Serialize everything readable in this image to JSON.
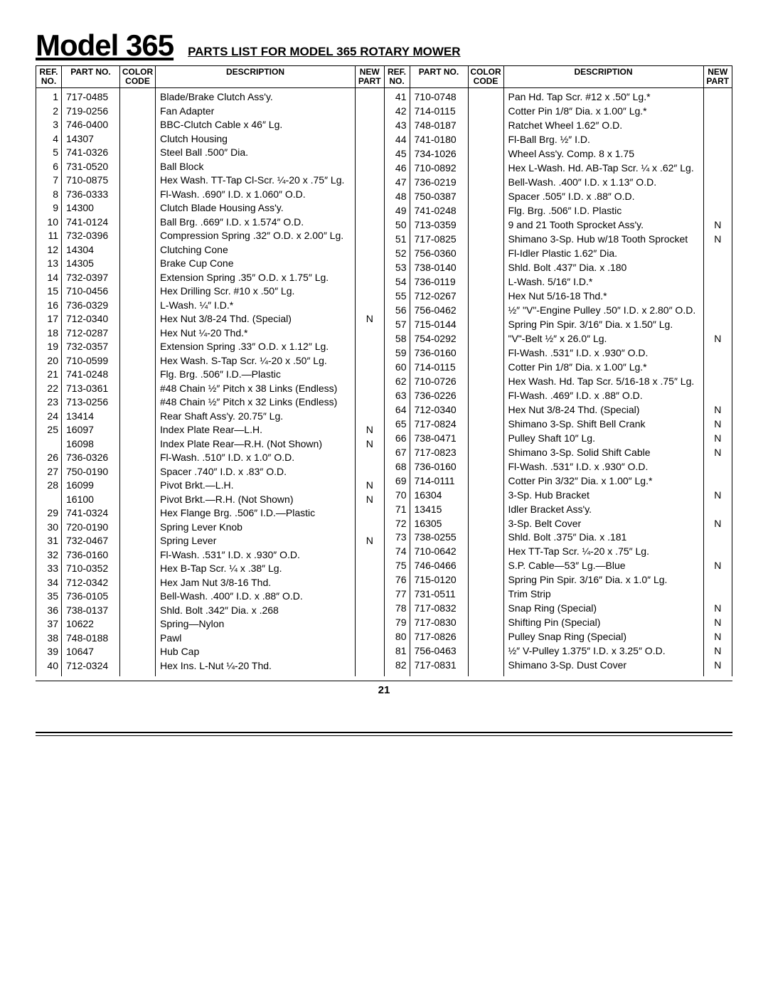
{
  "header": {
    "model_title": "Model 365",
    "subtitle": "PARTS LIST FOR MODEL 365 ROTARY MOWER"
  },
  "columns": {
    "ref": "REF.\nNO.",
    "part": "PART\nNO.",
    "color": "COLOR\nCODE",
    "desc": "DESCRIPTION",
    "newpart": "NEW\nPART"
  },
  "page_number": "21",
  "left": [
    {
      "ref": "1",
      "part": "717-0485",
      "desc": "Blade/Brake Clutch Ass'y."
    },
    {
      "ref": "2",
      "part": "719-0256",
      "desc": "Fan Adapter"
    },
    {
      "ref": "3",
      "part": "746-0400",
      "desc": "BBC-Clutch Cable x 46″ Lg."
    },
    {
      "ref": "4",
      "part": "14307",
      "desc": "Clutch Housing"
    },
    {
      "ref": "5",
      "part": "741-0326",
      "desc": "Steel Ball .500″ Dia."
    },
    {
      "ref": "6",
      "part": "731-0520",
      "desc": "Ball Block"
    },
    {
      "ref": "7",
      "part": "710-0875",
      "desc": "Hex Wash. TT-Tap Cl-Scr. ¼-20 x .75″ Lg."
    },
    {
      "ref": "8",
      "part": "736-0333",
      "desc": "Fl-Wash. .690″ I.D. x 1.060″ O.D."
    },
    {
      "ref": "9",
      "part": "14300",
      "desc": "Clutch Blade Housing Ass'y."
    },
    {
      "ref": "10",
      "part": "741-0124",
      "desc": "Ball Brg. .669″ I.D. x 1.574″ O.D."
    },
    {
      "ref": "11",
      "part": "732-0396",
      "desc": "Compression Spring .32″ O.D. x 2.00″ Lg."
    },
    {
      "ref": "12",
      "part": "14304",
      "desc": "Clutching Cone"
    },
    {
      "ref": "13",
      "part": "14305",
      "desc": "Brake Cup Cone"
    },
    {
      "ref": "14",
      "part": "732-0397",
      "desc": "Extension Spring .35″ O.D. x 1.75″ Lg."
    },
    {
      "ref": "15",
      "part": "710-0456",
      "desc": "Hex Drilling Scr. #10 x .50″ Lg."
    },
    {
      "ref": "16",
      "part": "736-0329",
      "desc": "L-Wash. ¼″ I.D.*"
    },
    {
      "ref": "17",
      "part": "712-0340",
      "desc": "Hex Nut 3/8-24 Thd. (Special)",
      "np": "N"
    },
    {
      "ref": "18",
      "part": "712-0287",
      "desc": "Hex Nut ¼-20 Thd.*"
    },
    {
      "ref": "19",
      "part": "732-0357",
      "desc": "Extension Spring .33″ O.D. x 1.12″ Lg."
    },
    {
      "ref": "20",
      "part": "710-0599",
      "desc": "Hex Wash. S-Tap Scr. ¼-20 x .50″ Lg."
    },
    {
      "ref": "21",
      "part": "741-0248",
      "desc": "Flg. Brg. .506″ I.D.—Plastic"
    },
    {
      "ref": "22",
      "part": "713-0361",
      "desc": "#48 Chain ½″ Pitch x 38 Links (Endless)"
    },
    {
      "ref": "23",
      "part": "713-0256",
      "desc": "#48 Chain ½″ Pitch x 32 Links (Endless)"
    },
    {
      "ref": "24",
      "part": "13414",
      "desc": "Rear Shaft Ass'y. 20.75″ Lg."
    },
    {
      "ref": "25",
      "part": "16097",
      "desc": "Index Plate Rear—L.H.",
      "np": "N"
    },
    {
      "ref": "",
      "part": "16098",
      "desc": "Index Plate Rear—R.H. (Not Shown)",
      "np": "N"
    },
    {
      "ref": "26",
      "part": "736-0326",
      "desc": "Fl-Wash. .510″ I.D. x 1.0″ O.D."
    },
    {
      "ref": "27",
      "part": "750-0190",
      "desc": "Spacer .740″ I.D. x .83″ O.D."
    },
    {
      "ref": "28",
      "part": "16099",
      "desc": "Pivot Brkt.—L.H.",
      "np": "N"
    },
    {
      "ref": "",
      "part": "16100",
      "desc": "Pivot Brkt.—R.H. (Not Shown)",
      "np": "N"
    },
    {
      "ref": "29",
      "part": "741-0324",
      "desc": "Hex Flange Brg. .506″ I.D.—Plastic"
    },
    {
      "ref": "30",
      "part": "720-0190",
      "desc": "Spring Lever Knob"
    },
    {
      "ref": "31",
      "part": "732-0467",
      "desc": "Spring Lever",
      "np": "N"
    },
    {
      "ref": "32",
      "part": "736-0160",
      "desc": "Fl-Wash. .531″ I.D. x .930″ O.D."
    },
    {
      "ref": "33",
      "part": "710-0352",
      "desc": "Hex B-Tap Scr. ¼ x .38″ Lg."
    },
    {
      "ref": "34",
      "part": "712-0342",
      "desc": "Hex Jam Nut 3/8-16 Thd."
    },
    {
      "ref": "35",
      "part": "736-0105",
      "desc": "Bell-Wash. .400″ I.D. x .88″ O.D."
    },
    {
      "ref": "36",
      "part": "738-0137",
      "desc": "Shld. Bolt .342″ Dia. x .268"
    },
    {
      "ref": "37",
      "part": "10622",
      "desc": "Spring—Nylon"
    },
    {
      "ref": "38",
      "part": "748-0188",
      "desc": "Pawl"
    },
    {
      "ref": "39",
      "part": "10647",
      "desc": "Hub Cap"
    },
    {
      "ref": "40",
      "part": "712-0324",
      "desc": "Hex Ins. L-Nut ¼-20 Thd."
    }
  ],
  "right": [
    {
      "ref": "41",
      "part": "710-0748",
      "desc": "Pan Hd. Tap Scr. #12 x .50″ Lg.*"
    },
    {
      "ref": "42",
      "part": "714-0115",
      "desc": "Cotter Pin 1/8″ Dia. x 1.00″ Lg.*"
    },
    {
      "ref": "43",
      "part": "748-0187",
      "desc": "Ratchet Wheel 1.62″ O.D."
    },
    {
      "ref": "44",
      "part": "741-0180",
      "desc": "Fl-Ball Brg. ½″ I.D."
    },
    {
      "ref": "45",
      "part": "734-1026",
      "desc": "Wheel Ass'y. Comp. 8 x 1.75"
    },
    {
      "ref": "46",
      "part": "710-0892",
      "desc": "Hex L-Wash. Hd. AB-Tap Scr. ¼ x .62″ Lg."
    },
    {
      "ref": "47",
      "part": "736-0219",
      "desc": "Bell-Wash. .400″ I.D. x 1.13″ O.D."
    },
    {
      "ref": "48",
      "part": "750-0387",
      "desc": "Spacer .505″ I.D. x .88″ O.D."
    },
    {
      "ref": "49",
      "part": "741-0248",
      "desc": "Flg. Brg. .506″ I.D. Plastic"
    },
    {
      "ref": "50",
      "part": "713-0359",
      "desc": "9 and 21 Tooth Sprocket Ass'y.",
      "np": "N"
    },
    {
      "ref": "51",
      "part": "717-0825",
      "desc": "Shimano 3-Sp. Hub w/18 Tooth Sprocket",
      "np": "N"
    },
    {
      "ref": "52",
      "part": "756-0360",
      "desc": "Fl-Idler Plastic 1.62″ Dia."
    },
    {
      "ref": "53",
      "part": "738-0140",
      "desc": "Shld. Bolt .437″ Dia. x .180"
    },
    {
      "ref": "54",
      "part": "736-0119",
      "desc": "L-Wash. 5/16″ I.D.*"
    },
    {
      "ref": "55",
      "part": "712-0267",
      "desc": "Hex Nut 5/16-18 Thd.*"
    },
    {
      "ref": "56",
      "part": "756-0462",
      "desc": "½″ \"V\"-Engine Pulley .50″ I.D. x 2.80″ O.D."
    },
    {
      "ref": "57",
      "part": "715-0144",
      "desc": "Spring Pin Spir. 3/16″ Dia. x 1.50″ Lg."
    },
    {
      "ref": "58",
      "part": "754-0292",
      "desc": "\"V\"-Belt ½″ x 26.0″ Lg.",
      "np": "N"
    },
    {
      "ref": "59",
      "part": "736-0160",
      "desc": "Fl-Wash. .531″ I.D. x .930″ O.D."
    },
    {
      "ref": "60",
      "part": "714-0115",
      "desc": "Cotter Pin 1/8″ Dia. x 1.00″ Lg.*"
    },
    {
      "ref": "62",
      "part": "710-0726",
      "desc": "Hex Wash. Hd. Tap Scr. 5/16-18 x .75″ Lg."
    },
    {
      "ref": "63",
      "part": "736-0226",
      "desc": "Fl-Wash. .469″ I.D. x .88″ O.D."
    },
    {
      "ref": "64",
      "part": "712-0340",
      "desc": "Hex Nut 3/8-24 Thd. (Special)",
      "np": "N"
    },
    {
      "ref": "65",
      "part": "717-0824",
      "desc": "Shimano 3-Sp. Shift Bell Crank",
      "np": "N"
    },
    {
      "ref": "66",
      "part": "738-0471",
      "desc": "Pulley Shaft 10″ Lg.",
      "np": "N"
    },
    {
      "ref": "67",
      "part": "717-0823",
      "desc": "Shimano 3-Sp. Solid Shift Cable",
      "np": "N"
    },
    {
      "ref": "68",
      "part": "736-0160",
      "desc": "Fl-Wash. .531″ I.D. x .930″ O.D."
    },
    {
      "ref": "69",
      "part": "714-0111",
      "desc": "Cotter Pin 3/32″ Dia. x 1.00″ Lg.*"
    },
    {
      "ref": "70",
      "part": "16304",
      "desc": "3-Sp. Hub Bracket",
      "np": "N"
    },
    {
      "ref": "71",
      "part": "13415",
      "desc": "Idler Bracket Ass'y."
    },
    {
      "ref": "72",
      "part": "16305",
      "desc": "3-Sp. Belt Cover",
      "np": "N"
    },
    {
      "ref": "73",
      "part": "738-0255",
      "desc": "Shld. Bolt .375″ Dia. x .181"
    },
    {
      "ref": "74",
      "part": "710-0642",
      "desc": "Hex TT-Tap Scr. ¼-20 x .75″ Lg."
    },
    {
      "ref": "75",
      "part": "746-0466",
      "desc": "S.P. Cable—53″ Lg.—Blue",
      "np": "N"
    },
    {
      "ref": "76",
      "part": "715-0120",
      "desc": "Spring Pin Spir. 3/16″ Dia. x 1.0″ Lg."
    },
    {
      "ref": "77",
      "part": "731-0511",
      "desc": "Trim Strip"
    },
    {
      "ref": "78",
      "part": "717-0832",
      "desc": "Snap Ring (Special)",
      "np": "N"
    },
    {
      "ref": "79",
      "part": "717-0830",
      "desc": "Shifting Pin (Special)",
      "np": "N"
    },
    {
      "ref": "80",
      "part": "717-0826",
      "desc": "Pulley Snap Ring (Special)",
      "np": "N"
    },
    {
      "ref": "81",
      "part": "756-0463",
      "desc": "½″ V-Pulley 1.375″ I.D. x 3.25″ O.D.",
      "np": "N"
    },
    {
      "ref": "82",
      "part": "717-0831",
      "desc": "Shimano 3-Sp. Dust Cover",
      "np": "N"
    }
  ]
}
